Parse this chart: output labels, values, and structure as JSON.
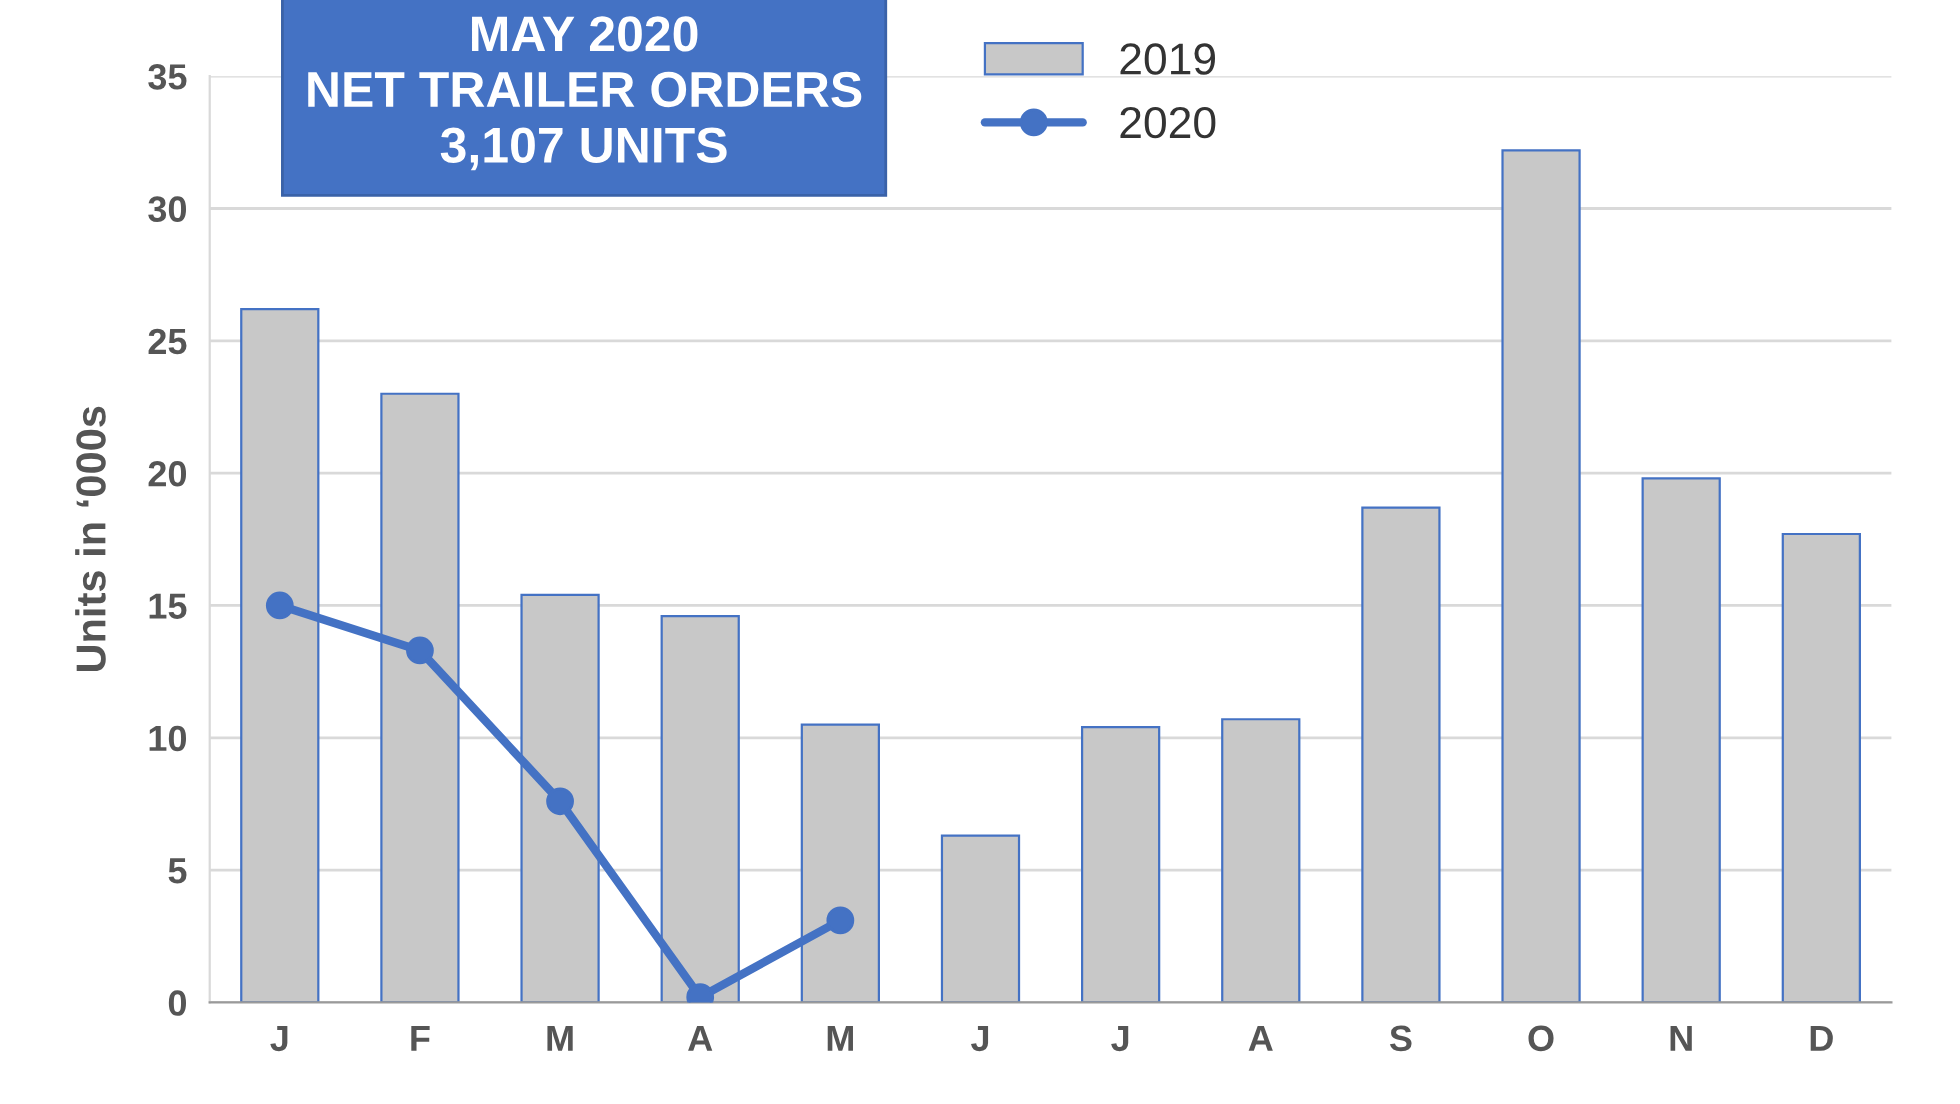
{
  "chart_data": {
    "type": "bar",
    "title": "MAY 2020\nNET TRAILER ORDERS\n3,107 UNITS",
    "ylabel": "Units in ‘000s",
    "categories": [
      "J",
      "F",
      "M",
      "A",
      "M",
      "J",
      "J",
      "A",
      "S",
      "O",
      "N",
      "D"
    ],
    "series": [
      {
        "name": "2019",
        "color": "#c8c8c8",
        "values": [
          26.2,
          23.0,
          15.4,
          14.6,
          10.5,
          6.3,
          10.4,
          10.7,
          18.7,
          32.2,
          19.8,
          17.7
        ]
      },
      {
        "name": "2020",
        "type": "line",
        "color": "#4472c4",
        "marker": "circle",
        "values": [
          15.0,
          13.3,
          7.6,
          0.2,
          3.1,
          null,
          null,
          null,
          null,
          null,
          null,
          null
        ]
      }
    ],
    "ylim": [
      0,
      35
    ],
    "yticks": [
      0,
      5,
      10,
      15,
      20,
      25,
      30,
      35
    ],
    "grid": "y",
    "legend": "top"
  }
}
